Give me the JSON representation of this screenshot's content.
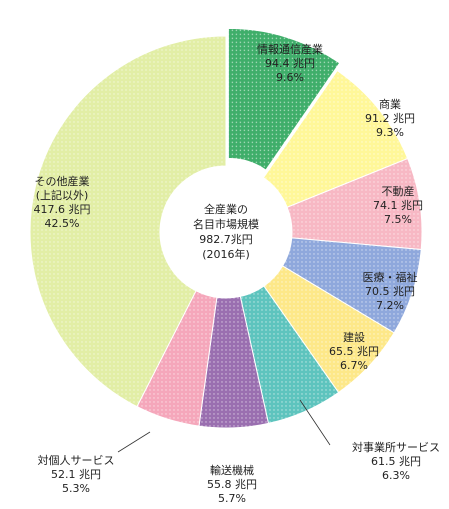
{
  "chart_data": {
    "type": "donut",
    "categories": [
      [
        "情報通信産業"
      ],
      [
        "商業"
      ],
      [
        "不動産"
      ],
      [
        "医療・福祉"
      ],
      [
        "建設"
      ],
      [
        "対事業所サービス"
      ],
      [
        "輸送機械"
      ],
      [
        "対個人サービス"
      ],
      [
        "その他産業",
        "(上記以外)"
      ]
    ],
    "values": [
      94.4,
      91.2,
      74.1,
      70.5,
      65.5,
      61.5,
      55.8,
      52.1,
      417.6
    ],
    "value_labels": [
      "94.4 兆円",
      "91.2 兆円",
      "74.1 兆円",
      "70.5 兆円",
      "65.5 兆円",
      "61.5 兆円",
      "55.8 兆円",
      "52.1 兆円",
      "417.6 兆円"
    ],
    "percents": [
      9.6,
      9.3,
      7.5,
      7.2,
      6.7,
      6.3,
      5.7,
      5.3,
      42.5
    ],
    "percent_labels": [
      "9.6%",
      "9.3%",
      "7.5%",
      "7.2%",
      "6.7%",
      "6.3%",
      "5.7%",
      "5.3%",
      "42.5%"
    ],
    "colors": [
      "#3fae6a",
      "#fff799",
      "#f7b8c4",
      "#8fa8dc",
      "#fde889",
      "#5ec4be",
      "#9a6fb0",
      "#f5a7bb",
      "#e2eea6"
    ],
    "center_label": [
      "全産業の",
      "名目市場規模",
      "982.7兆円",
      "(2016年)"
    ]
  }
}
